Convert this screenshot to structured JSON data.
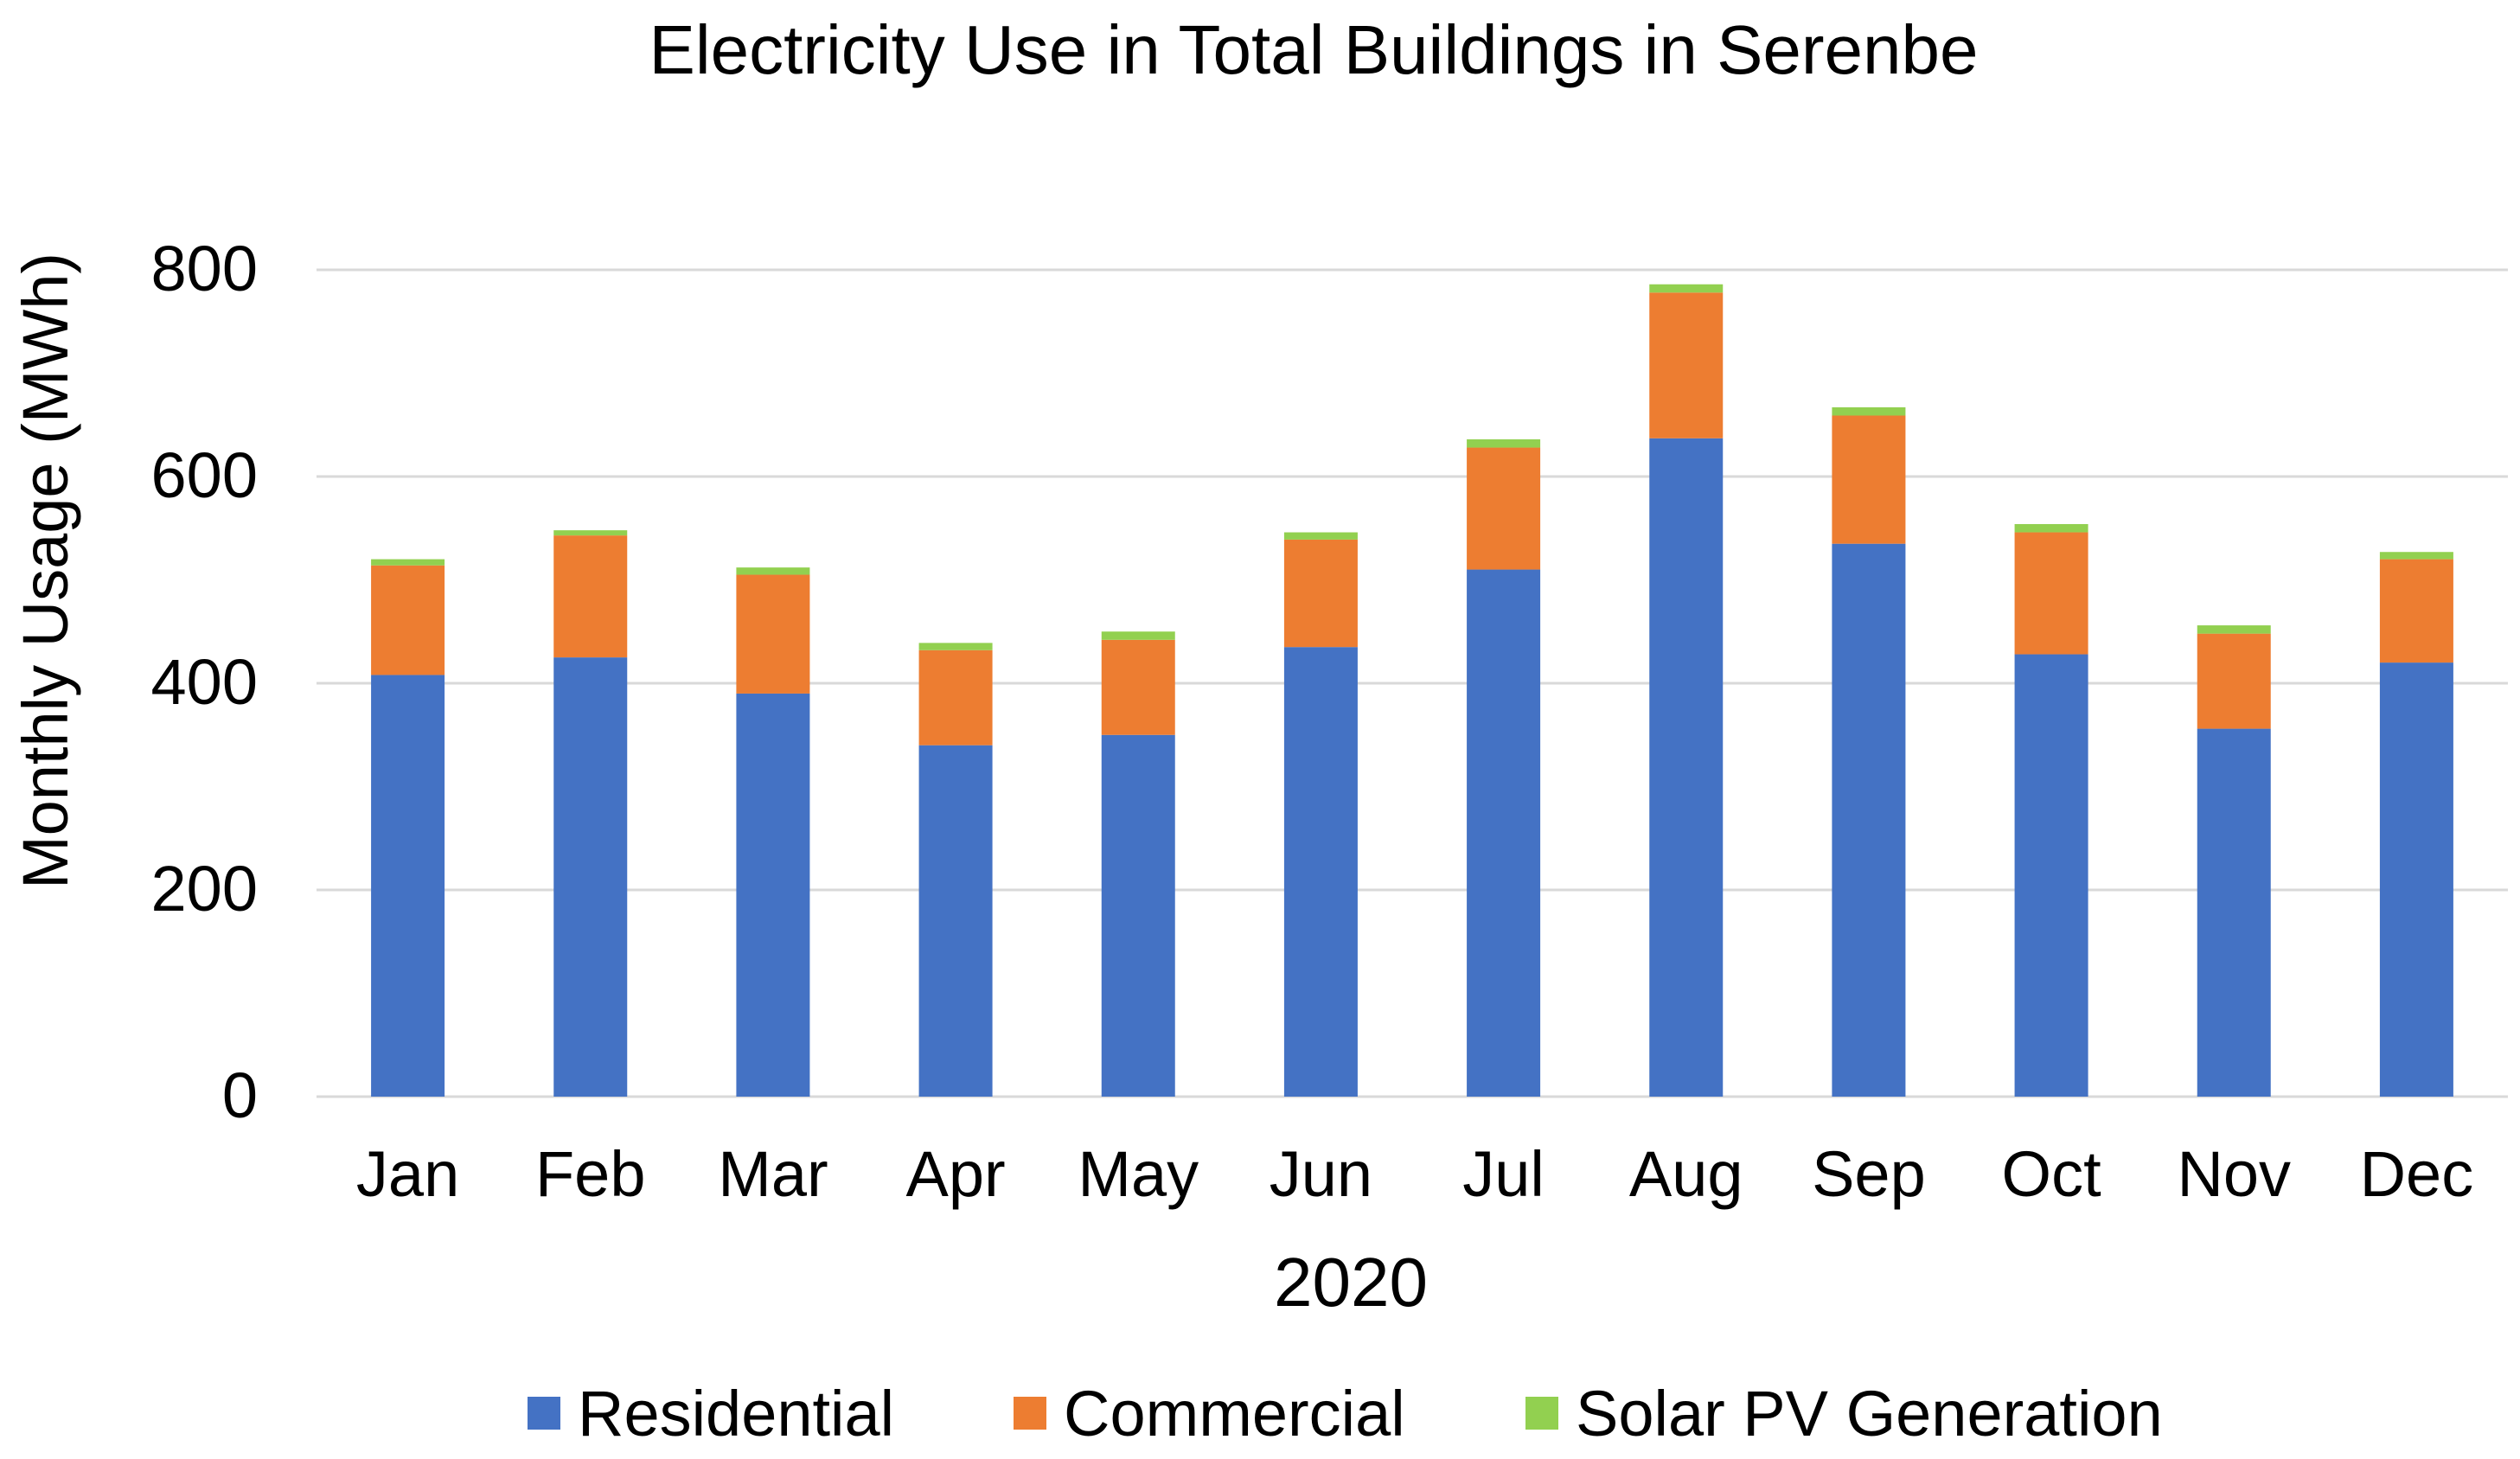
{
  "chart_data": {
    "type": "bar",
    "stacked": true,
    "title": "Electricity Use in Total Buildings in Serenbe",
    "xlabel": "2020",
    "ylabel": "Monthly Usage (MWh)",
    "ylim": [
      0,
      800
    ],
    "yticks": [
      "0",
      "200",
      "400",
      "600",
      "800"
    ],
    "grid": true,
    "legend_position": "bottom",
    "categories": [
      "Jan",
      "Feb",
      "Mar",
      "Apr",
      "May",
      "Jun",
      "Jul",
      "Aug",
      "Sep",
      "Oct",
      "Nov",
      "Dec"
    ],
    "series": [
      {
        "name": "Residential",
        "color": "#4472C4",
        "values": [
          408,
          425,
          390,
          340,
          350,
          435,
          510,
          637,
          535,
          428,
          356,
          420
        ]
      },
      {
        "name": "Commercial",
        "color": "#ED7D31",
        "values": [
          106,
          118,
          115,
          92,
          92,
          104,
          118,
          141,
          124,
          118,
          92,
          100
        ]
      },
      {
        "name": "Solar PV Generation",
        "color": "#92D050",
        "values": [
          6,
          5,
          7,
          7,
          8,
          7,
          8,
          8,
          8,
          8,
          8,
          7
        ]
      }
    ]
  }
}
